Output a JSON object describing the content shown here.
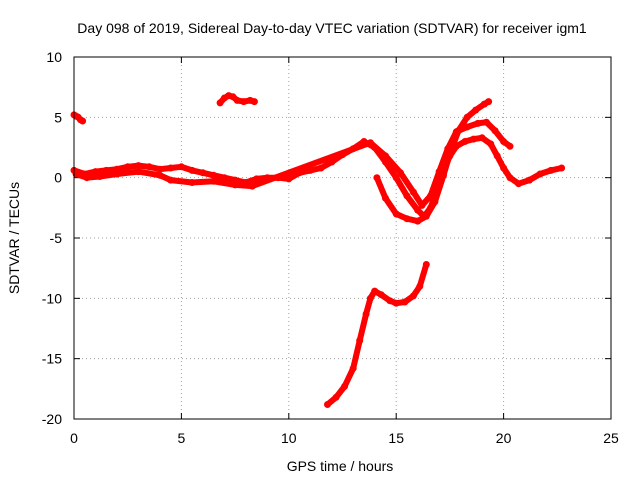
{
  "chart_data": {
    "type": "scatter",
    "title": "Day 098 of 2019, Sidereal Day-to-day VTEC variation (SDTVAR) for receiver igm1",
    "xlabel": "GPS time / hours",
    "ylabel": "SDTVAR / TECUs",
    "xlim": [
      0,
      25
    ],
    "ylim": [
      -20,
      10
    ],
    "xticks": [
      0,
      5,
      10,
      15,
      20,
      25
    ],
    "yticks": [
      -20,
      -15,
      -10,
      -5,
      0,
      5,
      10
    ],
    "grid": true,
    "marker_color": "#ff0000",
    "series": [
      {
        "name": "trace-a",
        "points": [
          [
            0.0,
            0.6
          ],
          [
            0.5,
            0.3
          ],
          [
            1.0,
            0.5
          ],
          [
            1.5,
            0.6
          ],
          [
            2.0,
            0.7
          ],
          [
            2.5,
            0.9
          ],
          [
            3.0,
            1.0
          ],
          [
            3.5,
            0.9
          ],
          [
            4.0,
            0.7
          ],
          [
            4.5,
            0.8
          ],
          [
            5.0,
            0.9
          ],
          [
            5.5,
            0.6
          ],
          [
            6.0,
            0.4
          ],
          [
            6.5,
            0.2
          ],
          [
            7.0,
            0.0
          ],
          [
            7.5,
            -0.2
          ],
          [
            8.0,
            -0.4
          ],
          [
            8.5,
            -0.1
          ],
          [
            9.0,
            0.0
          ],
          [
            9.5,
            0.0
          ],
          [
            10.0,
            -0.1
          ],
          [
            10.5,
            0.4
          ],
          [
            11.0,
            0.6
          ],
          [
            11.5,
            0.8
          ],
          [
            12.0,
            1.3
          ],
          [
            12.5,
            1.9
          ],
          [
            13.0,
            2.4
          ],
          [
            13.5,
            3.0
          ],
          [
            14.0,
            2.5
          ],
          [
            14.5,
            1.3
          ],
          [
            15.0,
            0.0
          ],
          [
            15.5,
            -1.5
          ],
          [
            16.0,
            -2.7
          ],
          [
            16.3,
            -3.2
          ],
          [
            16.6,
            -2.5
          ],
          [
            16.9,
            -1.0
          ],
          [
            17.2,
            0.6
          ],
          [
            17.5,
            1.8
          ],
          [
            17.8,
            2.6
          ],
          [
            18.2,
            3.0
          ],
          [
            18.6,
            3.2
          ],
          [
            19.0,
            3.3
          ],
          [
            19.4,
            2.8
          ],
          [
            19.7,
            1.8
          ],
          [
            20.0,
            0.8
          ],
          [
            20.3,
            0.0
          ],
          [
            20.7,
            -0.5
          ],
          [
            21.2,
            -0.2
          ],
          [
            21.7,
            0.3
          ],
          [
            22.2,
            0.6
          ],
          [
            22.7,
            0.8
          ]
        ]
      },
      {
        "name": "trace-b",
        "points": [
          [
            0.1,
            0.3
          ],
          [
            0.6,
            0.0
          ],
          [
            1.2,
            0.1
          ],
          [
            2.0,
            0.3
          ],
          [
            3.0,
            0.5
          ],
          [
            4.0,
            0.2
          ],
          [
            4.5,
            -0.2
          ],
          [
            5.5,
            -0.4
          ],
          [
            6.5,
            -0.3
          ],
          [
            7.5,
            -0.6
          ],
          [
            8.3,
            -0.7
          ],
          [
            13.8,
            2.9
          ],
          [
            14.5,
            1.8
          ],
          [
            15.2,
            0.4
          ],
          [
            15.8,
            -1.2
          ],
          [
            16.2,
            -2.3
          ],
          [
            16.6,
            -1.5
          ],
          [
            17.0,
            0.5
          ],
          [
            17.4,
            2.4
          ],
          [
            17.8,
            3.8
          ],
          [
            18.3,
            4.2
          ],
          [
            18.8,
            4.5
          ],
          [
            19.2,
            4.6
          ],
          [
            19.6,
            3.9
          ],
          [
            20.0,
            3.0
          ],
          [
            20.3,
            2.6
          ]
        ]
      },
      {
        "name": "trace-c",
        "points": [
          [
            14.1,
            0.0
          ],
          [
            14.5,
            -1.7
          ],
          [
            15.0,
            -3.0
          ],
          [
            15.5,
            -3.4
          ],
          [
            16.0,
            -3.6
          ],
          [
            16.4,
            -3.2
          ],
          [
            16.8,
            -2.0
          ],
          [
            17.2,
            0.2
          ],
          [
            17.5,
            2.0
          ],
          [
            17.9,
            3.9
          ],
          [
            18.3,
            5.0
          ],
          [
            18.7,
            5.6
          ],
          [
            19.1,
            6.1
          ],
          [
            19.3,
            6.3
          ]
        ]
      },
      {
        "name": "trace-d",
        "points": [
          [
            0.0,
            5.2
          ],
          [
            0.1,
            5.1
          ],
          [
            0.2,
            5.0
          ],
          [
            0.3,
            4.8
          ],
          [
            0.4,
            4.7
          ]
        ]
      },
      {
        "name": "trace-e",
        "points": [
          [
            6.8,
            6.2
          ],
          [
            7.0,
            6.6
          ],
          [
            7.2,
            6.8
          ],
          [
            7.4,
            6.7
          ],
          [
            7.6,
            6.4
          ],
          [
            7.9,
            6.3
          ],
          [
            8.2,
            6.4
          ],
          [
            8.4,
            6.3
          ]
        ]
      },
      {
        "name": "trace-f",
        "points": [
          [
            11.8,
            -18.8
          ],
          [
            12.2,
            -18.2
          ],
          [
            12.6,
            -17.3
          ],
          [
            13.0,
            -15.8
          ],
          [
            13.3,
            -13.5
          ],
          [
            13.6,
            -11.3
          ],
          [
            13.8,
            -10.0
          ],
          [
            14.0,
            -9.4
          ],
          [
            14.3,
            -9.7
          ],
          [
            14.7,
            -10.2
          ],
          [
            15.0,
            -10.4
          ],
          [
            15.4,
            -10.3
          ],
          [
            15.8,
            -9.8
          ],
          [
            16.1,
            -9.0
          ],
          [
            16.4,
            -7.2
          ]
        ]
      }
    ]
  }
}
